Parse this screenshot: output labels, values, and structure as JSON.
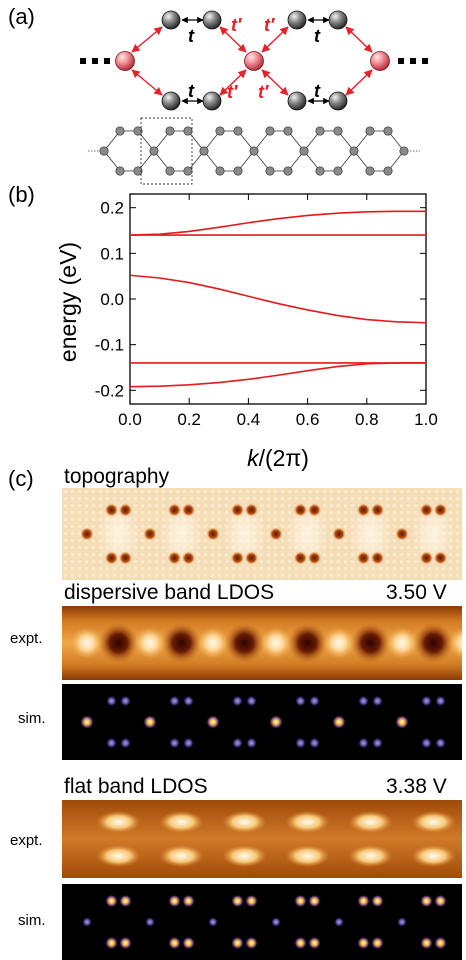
{
  "panel_a": {
    "label": "(a)",
    "hop_t": "t",
    "hop_tp": "t′",
    "colors": {
      "site_gray": "#5e5e5e",
      "site_red": "#e0707a",
      "arrow": "#e8202a"
    }
  },
  "panel_b": {
    "label": "(b)",
    "chart_data": {
      "type": "line",
      "xlabel_var": "k",
      "xlabel_rest": "/(2π)",
      "ylabel": "energy (eV)",
      "xlim": [
        0,
        1
      ],
      "ylim": [
        -0.23,
        0.23
      ],
      "x_ticks": [
        "0.0",
        "0.2",
        "0.4",
        "0.6",
        "0.8",
        "1.0"
      ],
      "y_ticks": [
        "0.2",
        "0.1",
        "0.0",
        "-0.1",
        "-0.2"
      ],
      "series": [
        {
          "x": [
            0,
            0.1,
            0.2,
            0.3,
            0.4,
            0.5,
            0.6,
            0.7,
            0.8,
            0.9,
            1.0
          ],
          "y": [
            0.14,
            0.142,
            0.148,
            0.157,
            0.167,
            0.176,
            0.183,
            0.188,
            0.191,
            0.192,
            0.192
          ]
        },
        {
          "x": [
            0,
            1.0
          ],
          "y": [
            0.14,
            0.14
          ]
        },
        {
          "x": [
            0,
            0.1,
            0.2,
            0.3,
            0.4,
            0.5,
            0.6,
            0.7,
            0.8,
            0.9,
            1.0
          ],
          "y": [
            0.052,
            0.046,
            0.036,
            0.022,
            0.006,
            -0.01,
            -0.024,
            -0.036,
            -0.045,
            -0.05,
            -0.052
          ]
        },
        {
          "x": [
            0,
            1.0
          ],
          "y": [
            -0.14,
            -0.14
          ]
        },
        {
          "x": [
            0,
            0.1,
            0.2,
            0.3,
            0.4,
            0.5,
            0.6,
            0.7,
            0.8,
            0.9,
            1.0
          ],
          "y": [
            -0.192,
            -0.191,
            -0.188,
            -0.183,
            -0.176,
            -0.167,
            -0.157,
            -0.148,
            -0.142,
            -0.14,
            -0.14
          ]
        }
      ],
      "line_color": "#e41a1c",
      "grid": false
    }
  },
  "panel_c": {
    "label": "(c)",
    "topography_title": "topography",
    "dispersive_title": "dispersive band LDOS",
    "dispersive_voltage": "3.50 V",
    "flat_title": "flat band LDOS",
    "flat_voltage": "3.38 V",
    "expt_label": "expt.",
    "sim_label": "sim."
  }
}
